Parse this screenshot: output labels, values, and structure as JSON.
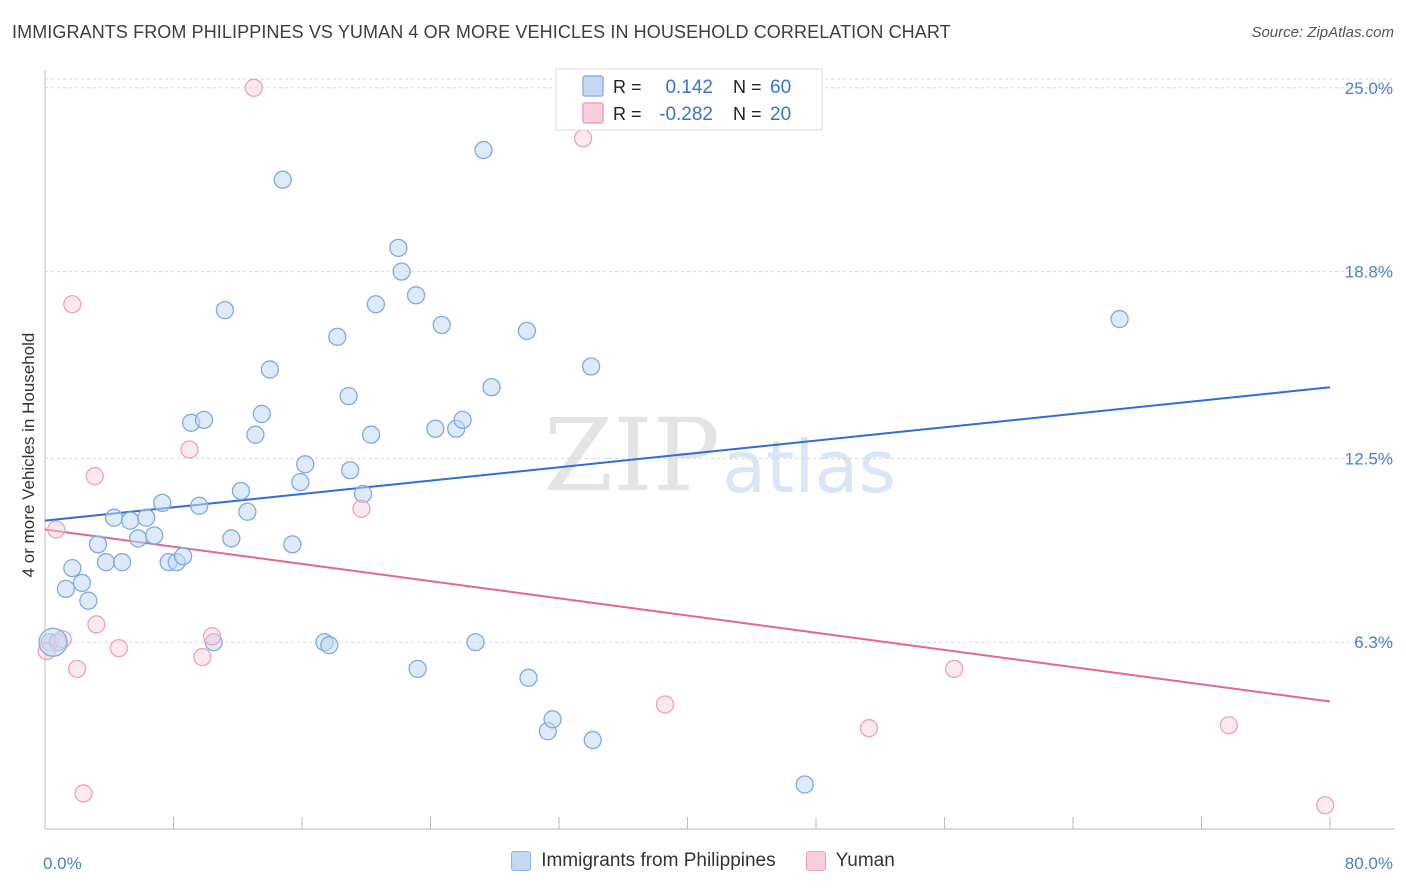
{
  "header": {
    "title": "IMMIGRANTS FROM PHILIPPINES VS YUMAN 4 OR MORE VEHICLES IN HOUSEHOLD CORRELATION CHART",
    "source": "Source: ZipAtlas.com"
  },
  "watermark": {
    "zip": "ZIP",
    "atlas": "atlas"
  },
  "legend_top": {
    "rows": [
      {
        "r_label": "R =",
        "r_value": "0.142",
        "n_label": "N =",
        "n_value": "60"
      },
      {
        "r_label": "R =",
        "r_value": "-0.282",
        "n_label": "N =",
        "n_value": "20"
      }
    ]
  },
  "chart_data": {
    "type": "scatter",
    "title": "IMMIGRANTS FROM PHILIPPINES VS YUMAN 4 OR MORE VEHICLES IN HOUSEHOLD CORRELATION CHART",
    "xlabel": "",
    "ylabel": "4 or more Vehicles in Household",
    "xlim": [
      0,
      80
    ],
    "ylim": [
      0,
      25.6
    ],
    "x_tick_labels": [
      "0.0%",
      "80.0%"
    ],
    "y_ticks": [
      6.3,
      12.5,
      18.8,
      25.0
    ],
    "y_tick_labels": [
      "6.3%",
      "12.5%",
      "18.8%",
      "25.0%"
    ],
    "grid": true,
    "legend": "top-center",
    "colors": {
      "blue": "#4a86d9",
      "pink": "#e8769c",
      "blue_fill": "#c4d8f3",
      "pink_fill": "#f9cfdc",
      "tick": "#4a7fd0"
    },
    "series": [
      {
        "name": "Immigrants from Philippines",
        "color": "blue",
        "trend": [
          [
            0,
            10.4
          ],
          [
            80,
            14.9
          ]
        ],
        "points": [
          [
            0.3,
            6.3
          ],
          [
            0.8,
            6.3
          ],
          [
            1.3,
            8.1
          ],
          [
            1.7,
            8.8
          ],
          [
            2.3,
            8.3
          ],
          [
            2.7,
            7.7
          ],
          [
            3.3,
            9.6
          ],
          [
            3.8,
            9.0
          ],
          [
            4.3,
            10.5
          ],
          [
            4.8,
            9.0
          ],
          [
            5.3,
            10.4
          ],
          [
            5.8,
            9.8
          ],
          [
            6.3,
            10.5
          ],
          [
            6.8,
            9.9
          ],
          [
            7.3,
            11.0
          ],
          [
            7.7,
            9.0
          ],
          [
            8.2,
            9.0
          ],
          [
            8.6,
            9.2
          ],
          [
            9.1,
            13.7
          ],
          [
            9.6,
            10.9
          ],
          [
            9.9,
            13.8
          ],
          [
            10.5,
            6.3
          ],
          [
            11.2,
            17.5
          ],
          [
            11.6,
            9.8
          ],
          [
            12.2,
            11.4
          ],
          [
            12.6,
            10.7
          ],
          [
            13.1,
            13.3
          ],
          [
            13.5,
            14.0
          ],
          [
            14.0,
            15.5
          ],
          [
            14.8,
            21.9
          ],
          [
            15.4,
            9.6
          ],
          [
            15.9,
            11.7
          ],
          [
            16.2,
            12.3
          ],
          [
            17.4,
            6.3
          ],
          [
            17.7,
            6.2
          ],
          [
            18.2,
            16.6
          ],
          [
            18.9,
            14.6
          ],
          [
            19.0,
            12.1
          ],
          [
            19.8,
            11.3
          ],
          [
            20.3,
            13.3
          ],
          [
            20.6,
            17.7
          ],
          [
            22.0,
            19.6
          ],
          [
            22.2,
            18.8
          ],
          [
            23.1,
            18.0
          ],
          [
            23.2,
            5.4
          ],
          [
            24.3,
            13.5
          ],
          [
            24.7,
            17.0
          ],
          [
            25.6,
            13.5
          ],
          [
            26.0,
            13.8
          ],
          [
            26.8,
            6.3
          ],
          [
            27.3,
            22.9
          ],
          [
            27.8,
            14.9
          ],
          [
            30.0,
            16.8
          ],
          [
            30.1,
            5.1
          ],
          [
            31.3,
            3.3
          ],
          [
            31.6,
            3.7
          ],
          [
            34.0,
            15.6
          ],
          [
            34.1,
            3.0
          ],
          [
            47.3,
            1.5
          ],
          [
            66.9,
            17.2
          ]
        ]
      },
      {
        "name": "Yuman",
        "color": "pink",
        "trend": [
          [
            0,
            10.1
          ],
          [
            80,
            4.3
          ]
        ],
        "points": [
          [
            0.1,
            6.0
          ],
          [
            0.7,
            10.1
          ],
          [
            1.1,
            6.4
          ],
          [
            1.7,
            17.7
          ],
          [
            2.0,
            5.4
          ],
          [
            2.4,
            1.2
          ],
          [
            3.1,
            11.9
          ],
          [
            3.2,
            6.9
          ],
          [
            4.6,
            6.1
          ],
          [
            9.0,
            12.8
          ],
          [
            9.8,
            5.8
          ],
          [
            10.4,
            6.5
          ],
          [
            13.0,
            25.0
          ],
          [
            19.7,
            10.8
          ],
          [
            33.5,
            23.3
          ],
          [
            38.6,
            4.2
          ],
          [
            51.3,
            3.4
          ],
          [
            56.6,
            5.4
          ],
          [
            73.7,
            3.5
          ],
          [
            79.7,
            0.8
          ]
        ]
      }
    ]
  },
  "legend_bottom": {
    "series1": "Immigrants from Philippines",
    "series2": "Yuman"
  }
}
